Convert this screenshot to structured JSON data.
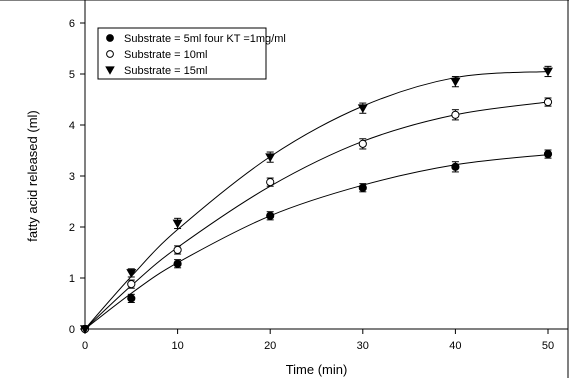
{
  "chart_data": {
    "type": "scatter",
    "xlabel": "Time (min)",
    "ylabel": "fatty acid released (ml)",
    "xlim": [
      0,
      50
    ],
    "ylim": [
      0,
      6
    ],
    "xticks": [
      0,
      10,
      20,
      30,
      40,
      50
    ],
    "yticks": [
      0,
      1,
      2,
      3,
      4,
      5,
      6
    ],
    "grid": false,
    "legend_position": "top-left",
    "x": [
      0,
      5,
      10,
      20,
      30,
      40,
      50
    ],
    "series": [
      {
        "name": "Substrate = 5ml  four KT =1mg/ml",
        "marker": "filled-circle",
        "values": [
          0,
          0.6,
          1.28,
          2.22,
          2.77,
          3.18,
          3.43
        ],
        "errors": [
          0,
          0.08,
          0.08,
          0.08,
          0.08,
          0.1,
          0.08
        ],
        "fit": [
          0,
          0.7,
          1.3,
          2.22,
          2.82,
          3.22,
          3.42
        ]
      },
      {
        "name": "Substrate = 10ml",
        "marker": "open-circle",
        "values": [
          0,
          0.88,
          1.55,
          2.88,
          3.63,
          4.2,
          4.45
        ],
        "errors": [
          0,
          0.08,
          0.08,
          0.08,
          0.1,
          0.1,
          0.08
        ],
        "fit": [
          0,
          0.85,
          1.6,
          2.8,
          3.68,
          4.2,
          4.45
        ]
      },
      {
        "name": "Substrate = 15ml",
        "marker": "filled-triangle-down",
        "values": [
          0,
          1.1,
          2.07,
          3.37,
          4.33,
          4.85,
          5.05
        ],
        "errors": [
          0,
          0.08,
          0.1,
          0.1,
          0.1,
          0.1,
          0.1
        ],
        "fit": [
          0,
          1.03,
          1.95,
          3.38,
          4.37,
          4.93,
          5.05
        ]
      }
    ]
  }
}
